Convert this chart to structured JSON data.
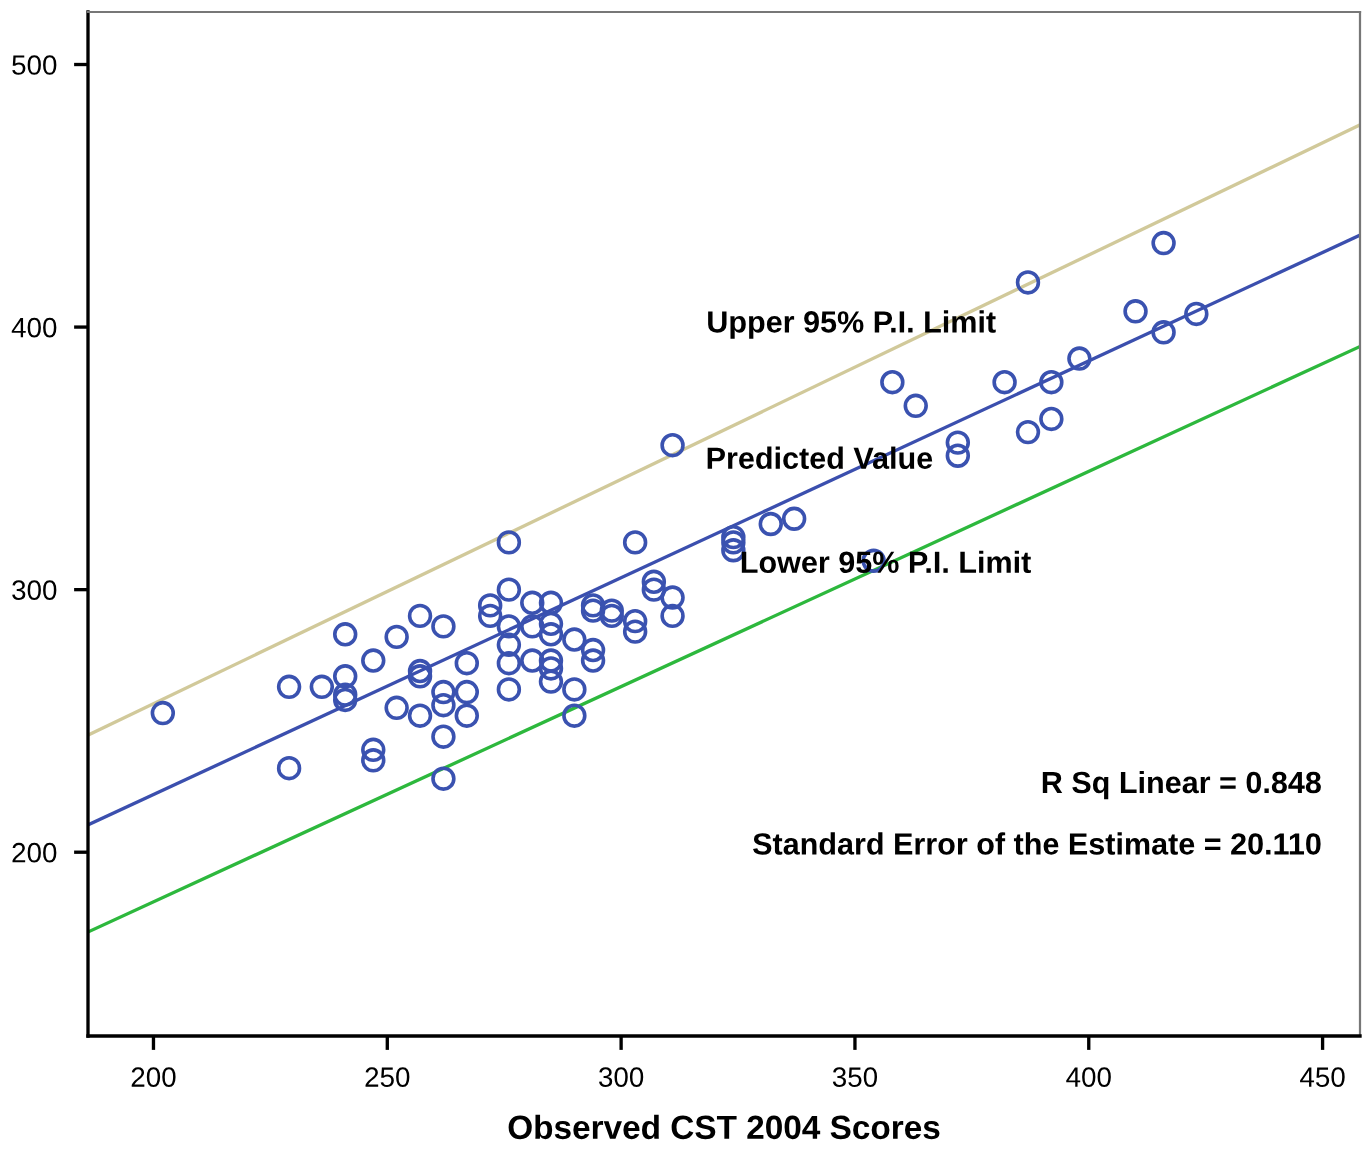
{
  "chart_data": {
    "type": "scatter",
    "xlabel": "Observed CST 2004 Scores",
    "xlim": [
      186,
      458
    ],
    "ylim": [
      130,
      520
    ],
    "xticks": [
      200,
      250,
      300,
      350,
      400,
      450
    ],
    "yticks": [
      200,
      300,
      400,
      500
    ],
    "grid": false,
    "legend": false,
    "marker": "circle",
    "series": [
      {
        "color": "#3a52b0",
        "x": [
          202,
          229,
          229,
          236,
          241,
          241,
          241,
          241,
          247,
          252,
          252,
          257,
          257,
          257,
          257,
          247,
          247,
          262,
          262,
          262,
          262,
          262,
          267,
          267,
          267,
          272,
          272,
          276,
          276,
          276,
          276,
          276,
          276,
          281,
          281,
          281,
          285,
          285,
          285,
          285,
          285,
          285,
          290,
          290,
          290,
          294,
          294,
          294,
          294,
          298,
          298,
          303,
          303,
          303,
          307,
          307,
          311,
          311,
          311,
          324,
          324,
          324,
          332,
          337,
          354,
          358,
          363,
          372,
          372,
          387,
          382,
          387,
          392,
          392,
          398,
          410,
          416,
          416,
          423
        ],
        "values": [
          253,
          263,
          232,
          263,
          283,
          267,
          260,
          258,
          273,
          282,
          255,
          290,
          269,
          267,
          252,
          239,
          235,
          286,
          261,
          256,
          244,
          228,
          272,
          261,
          252,
          294,
          290,
          318,
          300,
          286,
          279,
          272,
          262,
          295,
          286,
          273,
          295,
          287,
          283,
          273,
          270,
          265,
          281,
          262,
          252,
          294,
          292,
          277,
          273,
          292,
          290,
          318,
          288,
          284,
          303,
          300,
          297,
          290,
          355,
          320,
          318,
          315,
          325,
          327,
          311,
          379,
          370,
          356,
          351,
          417,
          379,
          360,
          379,
          365,
          388,
          406,
          432,
          398,
          405
        ]
      },
      {
        "type": "line",
        "marker": "none",
        "name": "Predicted Value",
        "color": "#3b4fae",
        "x": [
          186,
          458
        ],
        "values": [
          210.4,
          435
        ]
      },
      {
        "type": "line",
        "marker": "none",
        "name": "Upper 95% P.I. Limit",
        "color": "#d1c99a",
        "x": [
          186,
          458
        ],
        "values": [
          244.6,
          477
        ]
      },
      {
        "type": "line",
        "marker": "none",
        "name": "Lower 95% P.I. Limit",
        "color": "#2db83d",
        "x": [
          186,
          458
        ],
        "values": [
          169.6,
          392.6
        ]
      }
    ],
    "annotations": [
      "R Sq Linear = 0.848",
      "Standard Error of the Estimate = 20.110"
    ]
  }
}
